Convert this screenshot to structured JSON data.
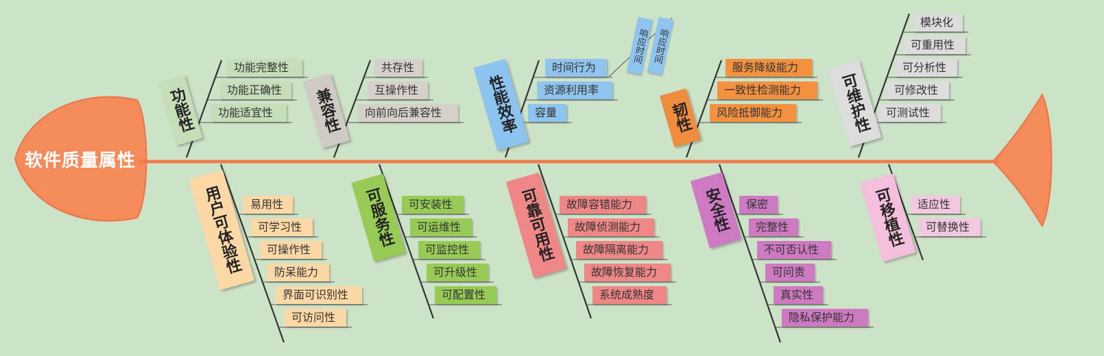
{
  "root": "软件质量属性",
  "categories": [
    {
      "name": "功能性",
      "items": [
        "功能完整性",
        "功能正确性",
        "功能适宜性"
      ]
    },
    {
      "name": "兼容性",
      "items": [
        "共存性",
        "互操作性",
        "向前向后兼容性"
      ]
    },
    {
      "name": "性能效率",
      "items": [
        "时间行为",
        "资源利用率",
        "容量"
      ],
      "notes": [
        "响应时间",
        "响应时间"
      ]
    },
    {
      "name": "韧性",
      "items": [
        "服务降级能力",
        "一致性检测能力",
        "风险抵御能力"
      ]
    },
    {
      "name": "可维护性",
      "items": [
        "模块化",
        "可重用性",
        "可分析性",
        "可修改性",
        "可测试性"
      ]
    },
    {
      "name": "用户可体验性",
      "items": [
        "易用性",
        "可学习性",
        "可操作性",
        "防呆能力",
        "界面可识别性",
        "可访问性"
      ]
    },
    {
      "name": "可服务性",
      "items": [
        "可安装性",
        "可运维性",
        "可监控性",
        "可升级性",
        "可配置性"
      ]
    },
    {
      "name": "可靠可用性",
      "items": [
        "故障容错能力",
        "故障侦测能力",
        "故障隔离能力",
        "故障恢复能力",
        "系统成熟度"
      ]
    },
    {
      "name": "安全性",
      "items": [
        "保密",
        "完整性",
        "不可否认性",
        "可问责",
        "真实性",
        "隐私保护能力"
      ]
    },
    {
      "name": "可移植性",
      "items": [
        "适应性",
        "可替换性"
      ]
    }
  ],
  "colors": {
    "background": "#cde3c8",
    "spine": "#f07d4f",
    "head": "#f58a5a",
    "category_fills": [
      "#c5ddb8",
      "#cfcac4",
      "#8dc3ef",
      "#f08c3e",
      "#dcdcdc",
      "#fbd8a6",
      "#97cb55",
      "#ef8787",
      "#cd7ac3",
      "#f4bfdc"
    ],
    "leaf_fills": [
      "#c5ddb8",
      "#d6d0ca",
      "#8fc4ef",
      "#f3913f",
      "#dcdcdc",
      "#fbd8a6",
      "#97cb55",
      "#ef8787",
      "#cd7ac3",
      "#f2c8e0"
    ]
  }
}
